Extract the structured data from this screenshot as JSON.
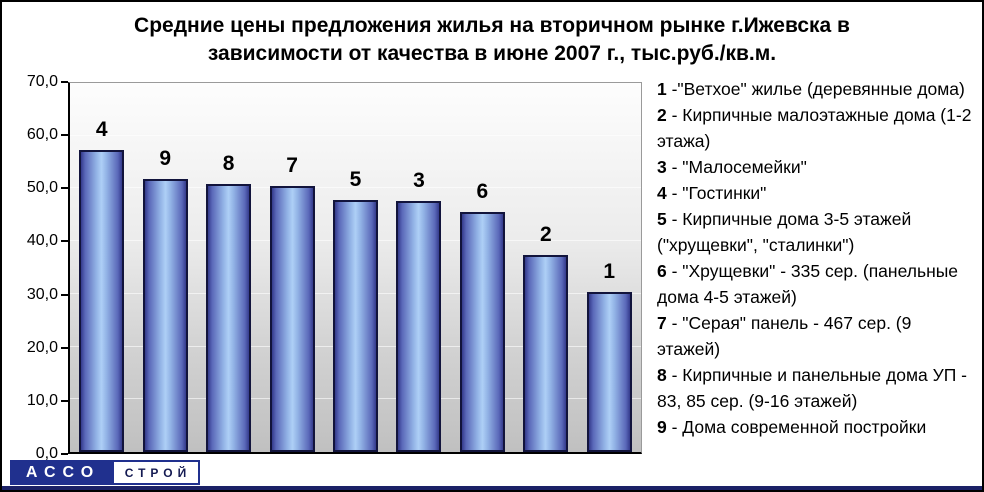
{
  "title": {
    "line1": "Средние цены предложения жилья на вторичном рынке г.Ижевска в",
    "line2": "зависимости от качества в июне 2007 г., тыс.руб./кв.м."
  },
  "chart_data": {
    "type": "bar",
    "categories": [
      "4",
      "9",
      "8",
      "7",
      "5",
      "3",
      "6",
      "2",
      "1"
    ],
    "values": [
      57.2,
      51.8,
      50.8,
      50.5,
      47.9,
      47.6,
      45.6,
      37.3,
      30.3
    ],
    "title": "Средние цены предложения жилья на вторичном рынке г.Ижевска в зависимости от качества в июне 2007 г., тыс.руб./кв.м.",
    "xlabel": "",
    "ylabel": "",
    "ylim": [
      0,
      70
    ],
    "ytick_step": 10,
    "ytick_labels": [
      "70,0",
      "60,0",
      "50,0",
      "40,0",
      "30,0",
      "20,0",
      "10,0",
      "0,0"
    ],
    "grid": true,
    "legend_position": "right"
  },
  "legend": {
    "items": [
      {
        "num": "1",
        "text": "-\"Ветхое\" жилье (деревянные дома)"
      },
      {
        "num": "2",
        "text": "- Кирпичные малоэтажные дома (1-2 этажа)"
      },
      {
        "num": "3",
        "text": "- \"Малосемейки\""
      },
      {
        "num": "4",
        "text": "- \"Гостинки\""
      },
      {
        "num": "5",
        "text": "- Кирпичные дома 3-5 этажей (\"хрущевки\", \"сталинки\")"
      },
      {
        "num": "6",
        "text": "- \"Хрущевки\" - 335 сер. (панельные дома 4-5 этажей)"
      },
      {
        "num": "7",
        "text": "- \"Серая\" панель - 467 сер. (9 этажей)"
      },
      {
        "num": "8",
        "text": "- Кирпичные и панельные дома УП - 83, 85 сер. (9-16 этажей)"
      },
      {
        "num": "9",
        "text": "- Дома современной постройки"
      }
    ]
  },
  "logo": {
    "part1": "АССО",
    "part2": "СТРОЙ"
  },
  "colors": {
    "logo_blue": "#20308e",
    "logo_text_dark": "#141a52",
    "bar_edge": "#343a8c",
    "bar_center": "#aecff6",
    "bar_border": "#12143c"
  }
}
